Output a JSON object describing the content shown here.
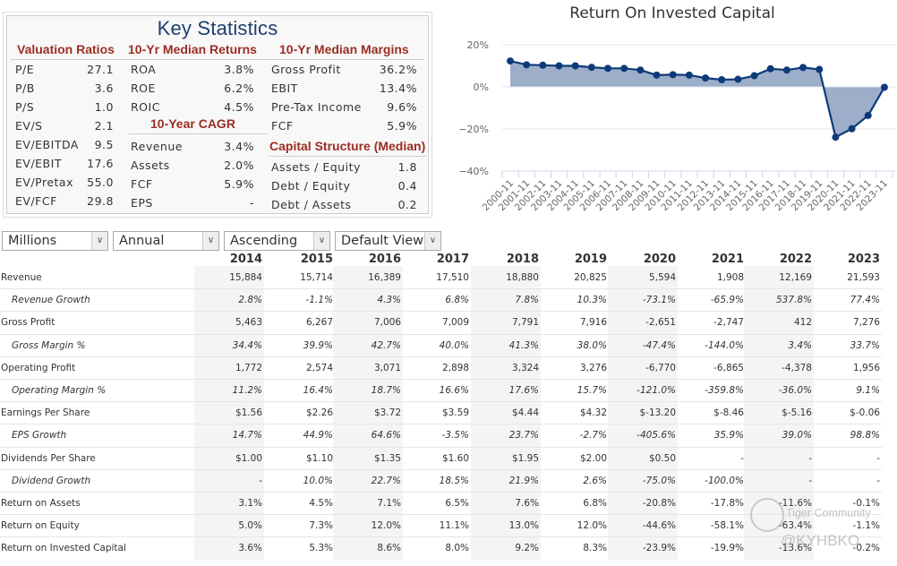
{
  "key_statistics": {
    "title": "Key Statistics",
    "valuation": {
      "heading": "Valuation Ratios",
      "items": [
        {
          "label": "P/E",
          "value": "27.1"
        },
        {
          "label": "P/B",
          "value": "3.6"
        },
        {
          "label": "P/S",
          "value": "1.0"
        },
        {
          "label": "EV/S",
          "value": "2.1"
        },
        {
          "label": "EV/EBITDA",
          "value": "9.5"
        },
        {
          "label": "EV/EBIT",
          "value": "17.6"
        },
        {
          "label": "EV/Pretax",
          "value": "55.0"
        },
        {
          "label": "EV/FCF",
          "value": "29.8"
        }
      ]
    },
    "returns": {
      "heading": "10-Yr Median Returns",
      "items": [
        {
          "label": "ROA",
          "value": "3.8%"
        },
        {
          "label": "ROE",
          "value": "6.2%"
        },
        {
          "label": "ROIC",
          "value": "4.5%"
        }
      ]
    },
    "cagr": {
      "heading": "10-Year CAGR",
      "items": [
        {
          "label": "Revenue",
          "value": "3.4%"
        },
        {
          "label": "Assets",
          "value": "2.0%"
        },
        {
          "label": "FCF",
          "value": "5.9%"
        },
        {
          "label": "EPS",
          "value": "-"
        }
      ]
    },
    "margins": {
      "heading": "10-Yr Median Margins",
      "items": [
        {
          "label": "Gross Profit",
          "value": "36.2%"
        },
        {
          "label": "EBIT",
          "value": "13.4%"
        },
        {
          "label": "Pre-Tax Income",
          "value": "9.6%"
        },
        {
          "label": "FCF",
          "value": "5.9%"
        }
      ]
    },
    "capital": {
      "heading": "Capital Structure (Median)",
      "items": [
        {
          "label": "Assets / Equity",
          "value": "1.8"
        },
        {
          "label": "Debt / Equity",
          "value": "0.4"
        },
        {
          "label": "Debt / Assets",
          "value": "0.2"
        }
      ]
    }
  },
  "chart_data": {
    "type": "area",
    "title": "Return On Invested Capital",
    "x": [
      "2000-11",
      "2001-11",
      "2002-11",
      "2003-11",
      "2004-11",
      "2005-11",
      "2006-11",
      "2007-11",
      "2008-11",
      "2009-11",
      "2010-11",
      "2011-11",
      "2012-11",
      "2013-11",
      "2014-11",
      "2015-11",
      "2016-11",
      "2017-11",
      "2018-11",
      "2019-11",
      "2020-11",
      "2021-11",
      "2022-11",
      "2023-11"
    ],
    "series": [
      {
        "name": "ROIC",
        "values": [
          12.3,
          10.5,
          10.3,
          10.0,
          10.0,
          9.3,
          8.8,
          8.8,
          8.0,
          5.6,
          5.8,
          5.6,
          4.2,
          3.4,
          3.6,
          5.3,
          8.6,
          8.0,
          9.2,
          8.3,
          -23.9,
          -19.9,
          -13.6,
          -0.2
        ]
      }
    ],
    "yticks": [
      20,
      0,
      -20,
      -40
    ],
    "ytick_labels": [
      "20%",
      "0%",
      "−20%",
      "−40%"
    ],
    "ylim": [
      -40,
      20
    ],
    "xlabel": "",
    "ylabel": "",
    "grid": true,
    "legend": "none",
    "colors": {
      "line": "#0d3b7a",
      "fill": "#97aac6"
    }
  },
  "controls": {
    "units": "Millions",
    "period": "Annual",
    "order": "Ascending",
    "view": "Default View"
  },
  "table": {
    "years": [
      "2014",
      "2015",
      "2016",
      "2017",
      "2018",
      "2019",
      "2020",
      "2021",
      "2022",
      "2023"
    ],
    "rows": [
      {
        "label": "Revenue",
        "sub": false,
        "values": [
          "15,884",
          "15,714",
          "16,389",
          "17,510",
          "18,880",
          "20,825",
          "5,594",
          "1,908",
          "12,169",
          "21,593"
        ]
      },
      {
        "label": "Revenue Growth",
        "sub": true,
        "values": [
          "2.8%",
          "-1.1%",
          "4.3%",
          "6.8%",
          "7.8%",
          "10.3%",
          "-73.1%",
          "-65.9%",
          "537.8%",
          "77.4%"
        ]
      },
      {
        "label": "Gross Profit",
        "sub": false,
        "values": [
          "5,463",
          "6,267",
          "7,006",
          "7,009",
          "7,791",
          "7,916",
          "-2,651",
          "-2,747",
          "412",
          "7,276"
        ]
      },
      {
        "label": "Gross Margin %",
        "sub": true,
        "values": [
          "34.4%",
          "39.9%",
          "42.7%",
          "40.0%",
          "41.3%",
          "38.0%",
          "-47.4%",
          "-144.0%",
          "3.4%",
          "33.7%"
        ]
      },
      {
        "label": "Operating Profit",
        "sub": false,
        "values": [
          "1,772",
          "2,574",
          "3,071",
          "2,898",
          "3,324",
          "3,276",
          "-6,770",
          "-6,865",
          "-4,378",
          "1,956"
        ]
      },
      {
        "label": "Operating Margin %",
        "sub": true,
        "values": [
          "11.2%",
          "16.4%",
          "18.7%",
          "16.6%",
          "17.6%",
          "15.7%",
          "-121.0%",
          "-359.8%",
          "-36.0%",
          "9.1%"
        ]
      },
      {
        "label": "Earnings Per Share",
        "sub": false,
        "values": [
          "$1.56",
          "$2.26",
          "$3.72",
          "$3.59",
          "$4.44",
          "$4.32",
          "$-13.20",
          "$-8.46",
          "$-5.16",
          "$-0.06"
        ]
      },
      {
        "label": "EPS Growth",
        "sub": true,
        "values": [
          "14.7%",
          "44.9%",
          "64.6%",
          "-3.5%",
          "23.7%",
          "-2.7%",
          "-405.6%",
          "35.9%",
          "39.0%",
          "98.8%"
        ]
      },
      {
        "label": "Dividends Per Share",
        "sub": false,
        "values": [
          "$1.00",
          "$1.10",
          "$1.35",
          "$1.60",
          "$1.95",
          "$2.00",
          "$0.50",
          "-",
          "-",
          "-"
        ]
      },
      {
        "label": "Dividend Growth",
        "sub": true,
        "values": [
          "-",
          "10.0%",
          "22.7%",
          "18.5%",
          "21.9%",
          "2.6%",
          "-75.0%",
          "-100.0%",
          "-",
          "-"
        ]
      },
      {
        "label": "Return on Assets",
        "sub": false,
        "values": [
          "3.1%",
          "4.5%",
          "7.1%",
          "6.5%",
          "7.6%",
          "6.8%",
          "-20.8%",
          "-17.8%",
          "-11.6%",
          "-0.1%"
        ]
      },
      {
        "label": "Return on Equity",
        "sub": false,
        "values": [
          "5.0%",
          "7.3%",
          "12.0%",
          "11.1%",
          "13.0%",
          "12.0%",
          "-44.6%",
          "-58.1%",
          "-63.4%",
          "-1.1%"
        ]
      },
      {
        "label": "Return on Invested Capital",
        "sub": false,
        "values": [
          "3.6%",
          "5.3%",
          "8.6%",
          "8.0%",
          "9.2%",
          "8.3%",
          "-23.9%",
          "-19.9%",
          "-13.6%",
          "-0.2%"
        ]
      }
    ]
  },
  "watermark": {
    "brand": "Tiger Community",
    "handle": "@KYHBKO"
  }
}
